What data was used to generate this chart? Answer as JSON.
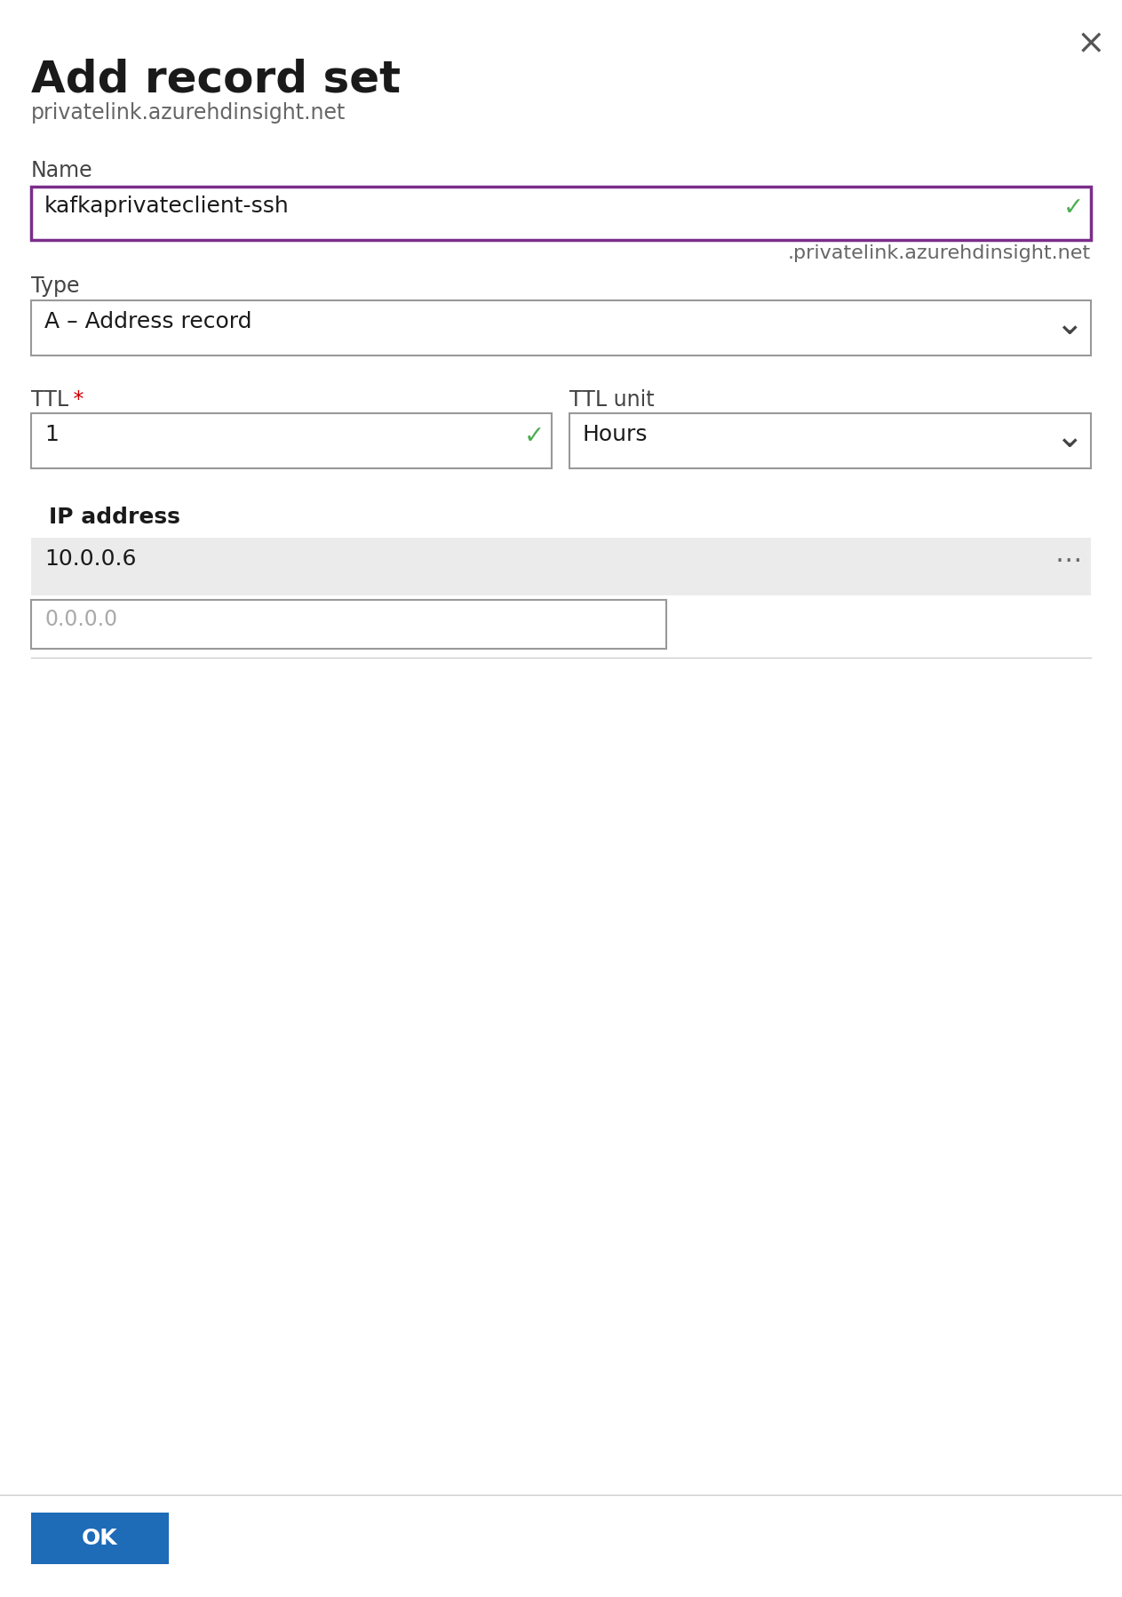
{
  "title": "Add record set",
  "title_color": "#1a1a1a",
  "subtitle": "privatelink.azurehdinsight.net",
  "subtitle_color": "#666666",
  "close_x": "×",
  "name_label": "Name",
  "name_value": "kafkaprivateclient-ssh",
  "name_suffix": ".privatelink.azurehdinsight.net",
  "name_border_color": "#7B2D8B",
  "name_checkmark_color": "#4caf50",
  "type_label": "Type",
  "type_value": "A – Address record",
  "type_border_color": "#999999",
  "ttl_label": "TTL",
  "ttl_asterisk_color": "#cc0000",
  "ttl_value": "1",
  "ttl_border_color": "#999999",
  "ttl_checkmark_color": "#4caf50",
  "ttl_unit_label": "TTL unit",
  "ttl_unit_value": "Hours",
  "ttl_unit_border_color": "#999999",
  "ip_label": "IP address",
  "ip_row_value": "10.0.0.6",
  "ip_row_bg": "#ebebeb",
  "ip_row_dots": "⋯",
  "ip_input_value": "0.0.0.0",
  "ip_input_border": "#999999",
  "divider_color": "#cccccc",
  "ok_button_text": "OK",
  "ok_button_bg": "#1e6bb8",
  "ok_button_text_color": "#ffffff",
  "bg_color": "#ffffff",
  "label_color": "#444444",
  "value_color": "#1a1a1a",
  "dropdown_arrow": "⌄",
  "fig_width": 12.63,
  "fig_height": 17.97
}
